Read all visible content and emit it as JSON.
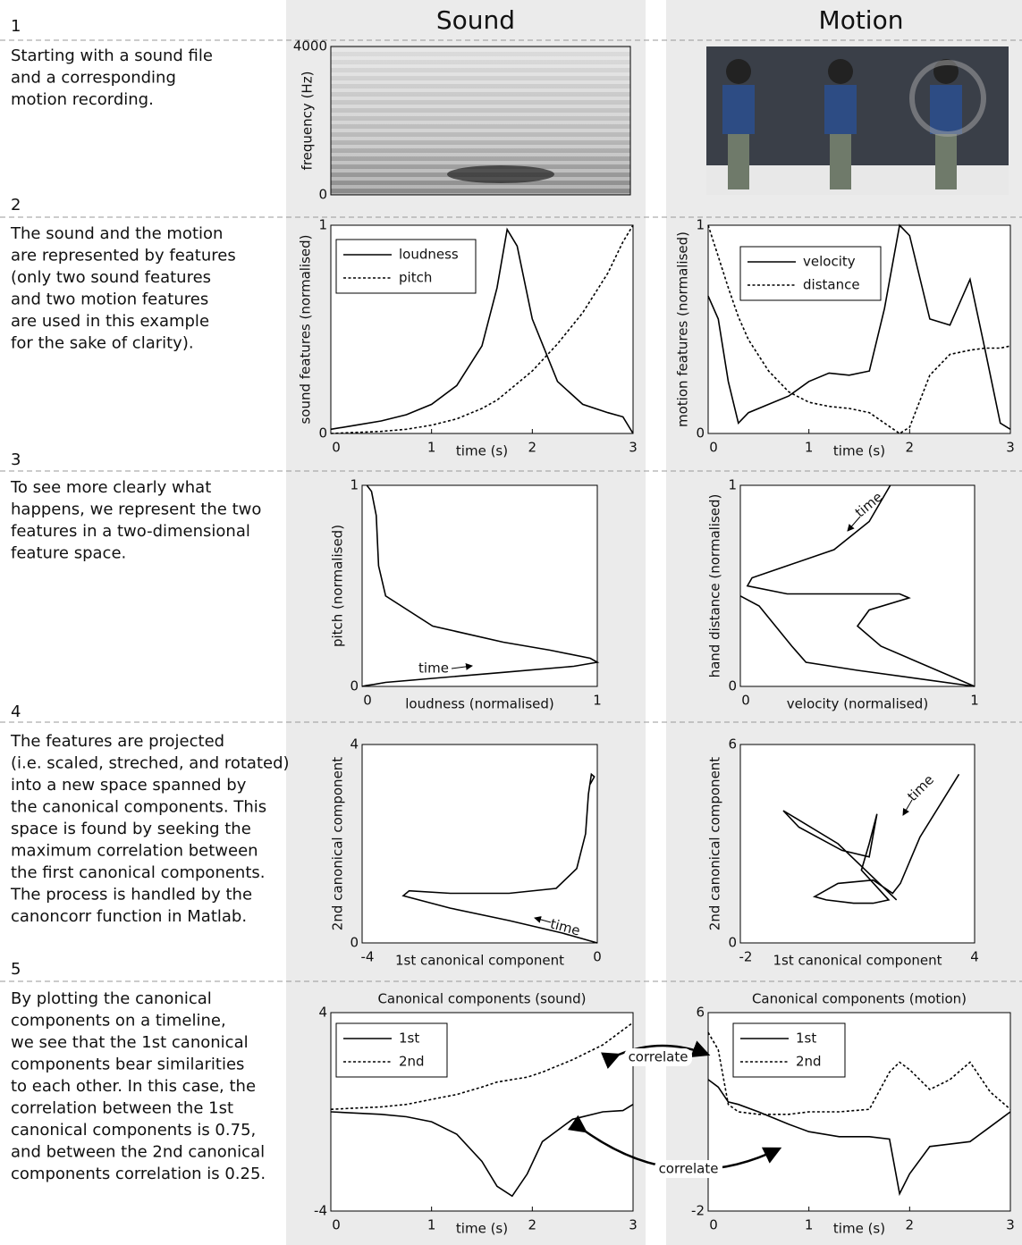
{
  "columns": [
    "Sound",
    "Motion"
  ],
  "steps": [
    {
      "number": "1",
      "lines": [
        "Starting with a sound file",
        "and a corresponding",
        "motion recording."
      ]
    },
    {
      "number": "2",
      "lines": [
        "The sound and the motion",
        "are represented by features",
        "(only two sound features",
        "and two motion features",
        "are used in this example",
        "for the sake  of clarity)."
      ]
    },
    {
      "number": "3",
      "lines": [
        "To see more clearly what",
        "happens, we represent the two",
        "features in a two-dimensional",
        "feature space."
      ]
    },
    {
      "number": "4",
      "lines": [
        "The features are projected",
        "(i.e. scaled, streched, and rotated)",
        "into a new space spanned by",
        "the canonical components. This",
        "space is found by seeking the",
        "maximum correlation between",
        "the first canonical components.",
        "The process is handled by the",
        "canoncorr function in Matlab."
      ]
    },
    {
      "number": "5",
      "lines": [
        "By plotting the canonical",
        "components on a timeline,",
        "we see that the 1st canonical",
        "components bear similarities",
        "to each other. In this case, the",
        "correlation between the 1st",
        "canonical components is 0.75,",
        "and between the 2nd canonical",
        "components correlation is 0.25."
      ]
    }
  ],
  "connectors": [
    "correlate",
    "correlate"
  ],
  "chart_data": [
    {
      "type": "spectrogram",
      "ylabel": "frequency (Hz)",
      "ylim": [
        0,
        4000
      ],
      "yticks": [
        0,
        4000
      ]
    },
    {
      "type": "line",
      "ylabel": "sound features (normalised)",
      "xlabel": "time (s)",
      "legend": "upper left",
      "x": [
        0,
        0.25,
        0.5,
        0.75,
        1,
        1.25,
        1.5,
        1.65,
        1.75,
        1.85,
        2.0,
        2.25,
        2.5,
        2.75,
        2.9,
        3
      ],
      "series": [
        {
          "name": "loudness",
          "color": "#000",
          "style": "solid",
          "values": [
            0.02,
            0.04,
            0.06,
            0.09,
            0.14,
            0.23,
            0.42,
            0.7,
            0.98,
            0.9,
            0.55,
            0.25,
            0.14,
            0.1,
            0.08,
            0
          ]
        },
        {
          "name": "pitch",
          "color": "#000",
          "style": "dashed",
          "values": [
            0,
            0.005,
            0.01,
            0.02,
            0.04,
            0.07,
            0.12,
            0.16,
            0.2,
            0.24,
            0.3,
            0.43,
            0.58,
            0.77,
            0.92,
            1.0
          ]
        }
      ],
      "xlim": [
        0,
        3
      ],
      "xticks": [
        0,
        1,
        2,
        3
      ],
      "ylim": [
        0,
        1
      ],
      "yticks": [
        0,
        1
      ]
    },
    {
      "type": "line",
      "ylabel": "motion features (normalised)",
      "xlabel": "time (s)",
      "legend": "upper left",
      "x": [
        0,
        0.1,
        0.2,
        0.3,
        0.4,
        0.6,
        0.8,
        1.0,
        1.2,
        1.4,
        1.6,
        1.75,
        1.9,
        2.0,
        2.2,
        2.4,
        2.6,
        2.75,
        2.9,
        3
      ],
      "series": [
        {
          "name": "velocity",
          "color": "#000",
          "style": "solid",
          "values": [
            0.66,
            0.55,
            0.25,
            0.05,
            0.1,
            0.14,
            0.18,
            0.25,
            0.29,
            0.28,
            0.3,
            0.6,
            1.0,
            0.95,
            0.55,
            0.52,
            0.74,
            0.4,
            0.05,
            0.02
          ]
        },
        {
          "name": "distance",
          "color": "#000",
          "style": "dashed",
          "values": [
            1.0,
            0.85,
            0.7,
            0.56,
            0.45,
            0.3,
            0.2,
            0.15,
            0.13,
            0.12,
            0.1,
            0.05,
            0.0,
            0.03,
            0.28,
            0.38,
            0.4,
            0.41,
            0.41,
            0.42
          ]
        }
      ],
      "xlim": [
        0,
        3
      ],
      "xticks": [
        0,
        1,
        2,
        3
      ],
      "ylim": [
        0,
        1
      ],
      "yticks": [
        0,
        1
      ]
    },
    {
      "type": "line",
      "ylabel": "pitch (normalised)",
      "xlabel": "loudness (normalised)",
      "annotations": [
        "time"
      ],
      "series": [
        {
          "color": "#000",
          "style": "solid",
          "x": [
            0,
            0.02,
            0.05,
            0.1,
            0.3,
            0.6,
            0.9,
            1.0,
            0.97,
            0.8,
            0.6,
            0.3,
            0.1,
            0.07,
            0.06,
            0.04,
            0.02
          ],
          "values": [
            0,
            0.005,
            0.01,
            0.02,
            0.04,
            0.07,
            0.1,
            0.12,
            0.14,
            0.18,
            0.22,
            0.3,
            0.45,
            0.6,
            0.85,
            0.97,
            1.0
          ]
        }
      ],
      "xlim": [
        0,
        1
      ],
      "xticks": [
        0,
        1
      ],
      "ylim": [
        0,
        1
      ],
      "yticks": [
        0,
        1
      ]
    },
    {
      "type": "line",
      "ylabel": "hand distance (normalised)",
      "xlabel": "velocity (normalised)",
      "annotations": [
        "time"
      ],
      "series": [
        {
          "color": "#000",
          "style": "solid",
          "x": [
            0.64,
            0.55,
            0.4,
            0.2,
            0.05,
            0.03,
            0.2,
            0.68,
            0.72,
            0.55,
            0.5,
            0.6,
            1.0,
            0.5,
            0.28,
            0.22,
            0.15,
            0.08,
            0.0
          ],
          "values": [
            1.0,
            0.82,
            0.68,
            0.6,
            0.54,
            0.5,
            0.46,
            0.46,
            0.44,
            0.38,
            0.3,
            0.2,
            0.0,
            0.08,
            0.12,
            0.2,
            0.3,
            0.4,
            0.45
          ]
        }
      ],
      "xlim": [
        0,
        1
      ],
      "xticks": [
        0,
        1
      ],
      "ylim": [
        0,
        1
      ],
      "yticks": [
        0,
        1
      ]
    },
    {
      "type": "line",
      "ylabel": "2nd canonical component",
      "xlabel": "1st canonical component",
      "annotations": [
        "time"
      ],
      "series": [
        {
          "color": "#000",
          "style": "solid",
          "x": [
            0,
            -0.6,
            -1.5,
            -2.5,
            -3.3,
            -3.2,
            -2.5,
            -1.5,
            -0.7,
            -0.35,
            -0.2,
            -0.15,
            -0.1,
            -0.05,
            -0.12
          ],
          "values": [
            0,
            0.2,
            0.45,
            0.7,
            0.95,
            1.05,
            1.0,
            1.0,
            1.1,
            1.5,
            2.2,
            3.0,
            3.4,
            3.35,
            3.2
          ]
        }
      ],
      "xlim": [
        -4,
        0
      ],
      "xticks": [
        -4,
        0
      ],
      "ylim": [
        0,
        4
      ],
      "yticks": [
        0,
        4
      ]
    },
    {
      "type": "line",
      "ylabel": "2nd canonical component",
      "xlabel": "1st canonical component",
      "annotations": [
        "time"
      ],
      "series": [
        {
          "color": "#000",
          "style": "solid",
          "x": [
            2.0,
            0.5,
            -0.9,
            -0.5,
            0.6,
            1.3,
            1.5,
            1.3,
            1.1,
            1.8,
            1.4,
            0.9,
            0.2,
            -0.1,
            0.5,
            1.4,
            1.9,
            2.1,
            2.6,
            3.6
          ],
          "values": [
            1.3,
            3.0,
            4.0,
            3.5,
            2.8,
            2.6,
            3.9,
            3.0,
            2.2,
            1.3,
            1.2,
            1.2,
            1.3,
            1.4,
            1.8,
            1.9,
            1.5,
            1.8,
            3.2,
            5.1
          ]
        }
      ],
      "xlim": [
        -2,
        4
      ],
      "xticks": [
        -2,
        4
      ],
      "ylim": [
        0,
        6
      ],
      "yticks": [
        0,
        6
      ]
    },
    {
      "type": "line",
      "title": "Canonical components (sound)",
      "xlabel": "time (s)",
      "legend": "upper left",
      "x": [
        0,
        0.25,
        0.5,
        0.75,
        1,
        1.25,
        1.5,
        1.65,
        1.8,
        1.95,
        2.1,
        2.4,
        2.7,
        2.9,
        3
      ],
      "series": [
        {
          "name": "1st",
          "color": "#000",
          "style": "solid",
          "values": [
            0,
            -0.05,
            -0.1,
            -0.2,
            -0.4,
            -0.9,
            -2.0,
            -3.0,
            -3.4,
            -2.5,
            -1.2,
            -0.3,
            0,
            0.05,
            0.3
          ]
        },
        {
          "name": "2nd",
          "color": "#000",
          "style": "dashed",
          "values": [
            0.1,
            0.15,
            0.2,
            0.3,
            0.5,
            0.7,
            1.0,
            1.2,
            1.3,
            1.4,
            1.6,
            2.1,
            2.7,
            3.3,
            3.6
          ]
        }
      ],
      "xlim": [
        0,
        3
      ],
      "xticks": [
        0,
        1,
        2,
        3
      ],
      "ylim": [
        -4,
        4
      ],
      "yticks": [
        -4,
        4
      ]
    },
    {
      "type": "line",
      "title": "Canonical components (motion)",
      "xlabel": "time (s)",
      "legend": "upper left",
      "x": [
        0,
        0.1,
        0.2,
        0.3,
        0.5,
        0.8,
        1.0,
        1.3,
        1.6,
        1.8,
        1.9,
        2.0,
        2.2,
        2.4,
        2.6,
        2.8,
        3
      ],
      "series": [
        {
          "name": "1st",
          "color": "#000",
          "style": "solid",
          "values": [
            3.3,
            3.0,
            2.4,
            2.3,
            2.0,
            1.5,
            1.2,
            1.0,
            1.0,
            0.9,
            -1.3,
            -0.5,
            0.6,
            0.7,
            0.8,
            1.4,
            2.0
          ]
        },
        {
          "name": "2nd",
          "color": "#000",
          "style": "dashed",
          "values": [
            5.2,
            4.5,
            2.3,
            2.0,
            1.9,
            1.9,
            2.0,
            2.0,
            2.1,
            3.6,
            4.0,
            3.7,
            2.9,
            3.3,
            4.0,
            2.8,
            2.1
          ]
        }
      ],
      "xlim": [
        0,
        3
      ],
      "xticks": [
        0,
        1,
        2,
        3
      ],
      "ylim": [
        -2,
        6
      ],
      "yticks": [
        -2,
        6
      ]
    }
  ]
}
